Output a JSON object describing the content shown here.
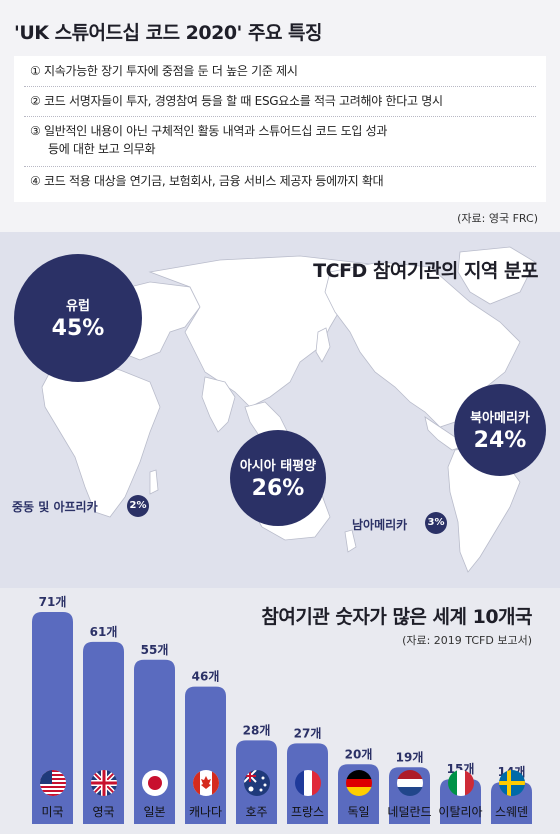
{
  "header": {
    "title": "'UK 스튜어드십 코드 2020' 주요 특징",
    "items": [
      "① 지속가능한 장기 투자에 중점을 둔 더 높은 기준 제시",
      "② 코드 서명자들이 투자, 경영참여 등을 할 때 ESG요소를 적극 고려해야 한다고 명시",
      "③ 일반적인 내용이 아닌 구체적인 활동 내역과 스튜어드십 코드 도입 성과",
      "등에 대한 보고 의무화",
      "④ 코드 적용 대상을 연기금, 보험회사, 금융 서비스 제공자 등에까지 확대"
    ],
    "source": "(자료: 영국 FRC)"
  },
  "chart_data": [
    {
      "type": "bubble-map",
      "title": "TCFD 참여기관의 지역 분포",
      "regions": [
        {
          "name": "유럽",
          "label": "45%",
          "value": 45
        },
        {
          "name": "북아메리카",
          "label": "24%",
          "value": 24
        },
        {
          "name": "아시아 태평양",
          "label": "26%",
          "value": 26
        },
        {
          "name": "중동 및 아프리카",
          "label": "2%",
          "value": 2
        },
        {
          "name": "남아메리카",
          "label": "3%",
          "value": 3
        }
      ]
    },
    {
      "type": "bar",
      "title": "참여기관 숫자가 많은 세계 10개국",
      "source": "(자료: 2019 TCFD 보고서)",
      "categories": [
        "미국",
        "영국",
        "일본",
        "캐나다",
        "호주",
        "프랑스",
        "독일",
        "네덜란드",
        "이탈리아",
        "스웨덴"
      ],
      "values": [
        71,
        61,
        55,
        46,
        28,
        27,
        20,
        19,
        15,
        14
      ],
      "value_labels": [
        "71개",
        "61개",
        "55개",
        "46개",
        "28개",
        "27개",
        "20개",
        "19개",
        "15개",
        "14개"
      ],
      "bar_color": "#5a6bbf"
    }
  ],
  "colors": {
    "bubble": "#2b3166",
    "bar": "#5a6bbf",
    "land": "#ffffff",
    "sea": "#dfe1ec"
  }
}
